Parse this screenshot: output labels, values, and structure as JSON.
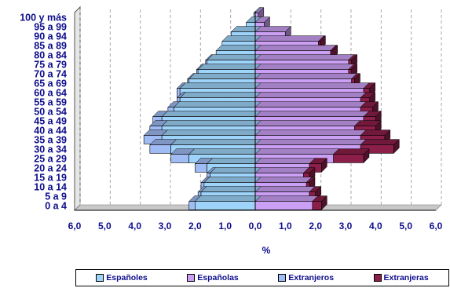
{
  "colors": {
    "espanoles": "#9fd4fa",
    "espanolas": "#cba0f4",
    "extranjeros": "#9fbcf5",
    "extranjeras": "#8c1f4a",
    "text": "#0d0d8c",
    "grid": "#a8a8a8",
    "floor": "#c8c8c8"
  },
  "chart_data": {
    "type": "bar",
    "orientation": "horizontal-population-pyramid",
    "stacked": true,
    "xlabel": "%",
    "xlim": [
      -6,
      6
    ],
    "x_ticks": [
      "6,0",
      "5,0",
      "4,0",
      "3,0",
      "2,0",
      "1,0",
      "0,0",
      "1,0",
      "2,0",
      "3,0",
      "4,0",
      "5,0",
      "6,0"
    ],
    "categories": [
      "0 a 4",
      "5 a 9",
      "10 a 14",
      "15 a 19",
      "20 a 24",
      "25 a 29",
      "30 a 34",
      "35 a 39",
      "40 a 44",
      "45 a 49",
      "50 a 54",
      "55 a 59",
      "60 a 64",
      "65 a 69",
      "70 a 74",
      "75 a 79",
      "80 a 84",
      "85 a 89",
      "90 a 94",
      "95 a 99",
      "100 y más"
    ],
    "series": [
      {
        "name": "Españoles",
        "side": "left",
        "values": [
          2.0,
          1.8,
          1.7,
          1.5,
          1.6,
          2.2,
          2.8,
          3.1,
          3.1,
          3.1,
          2.7,
          2.5,
          2.5,
          2.2,
          1.9,
          1.6,
          1.3,
          1.1,
          0.8,
          0.3,
          0.05
        ]
      },
      {
        "name": "Españolas",
        "side": "right",
        "values": [
          1.9,
          1.8,
          1.7,
          1.6,
          1.8,
          2.6,
          3.5,
          3.5,
          3.3,
          3.6,
          3.5,
          3.5,
          3.6,
          3.2,
          3.1,
          3.1,
          2.5,
          2.1,
          1.0,
          0.3,
          0.1
        ]
      },
      {
        "name": "Extranjeros",
        "side": "left",
        "values": [
          0.2,
          0.1,
          0.1,
          0.1,
          0.4,
          0.6,
          0.7,
          0.6,
          0.4,
          0.3,
          0.2,
          0.1,
          0.1,
          0.05,
          0.05,
          0.05,
          0.0,
          0.0,
          0.0,
          0.0,
          0.0
        ]
      },
      {
        "name": "Extranjeras",
        "side": "right",
        "values": [
          0.3,
          0.2,
          0.1,
          0.2,
          0.4,
          1.0,
          1.1,
          0.8,
          0.7,
          0.4,
          0.4,
          0.3,
          0.2,
          0.1,
          0.1,
          0.1,
          0.05,
          0.05,
          0.0,
          0.0,
          0.0
        ]
      }
    ],
    "grid": true,
    "legend": "bottom"
  }
}
